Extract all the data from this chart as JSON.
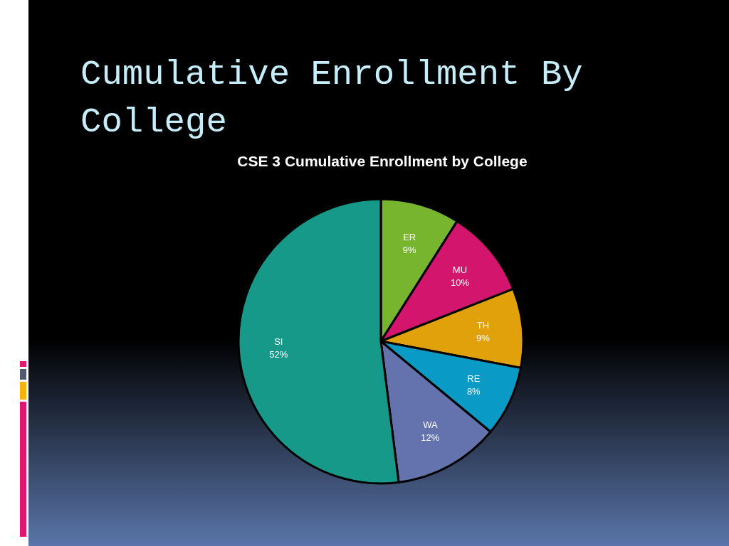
{
  "chart_data": {
    "type": "pie",
    "title": "Cumulative Enrollment By College",
    "subtitle": "CSE 3 Cumulative Enrollment by College",
    "categories": [
      "ER",
      "MU",
      "TH",
      "RE",
      "WA",
      "SI"
    ],
    "values": [
      9,
      10,
      9,
      8,
      12,
      52
    ],
    "colors": [
      "#77b52e",
      "#d3156e",
      "#e0a10a",
      "#0a9ac6",
      "#6473ae",
      "#17998a"
    ],
    "value_labels": [
      "9%",
      "10%",
      "9%",
      "8%",
      "12%",
      "52%"
    ]
  }
}
